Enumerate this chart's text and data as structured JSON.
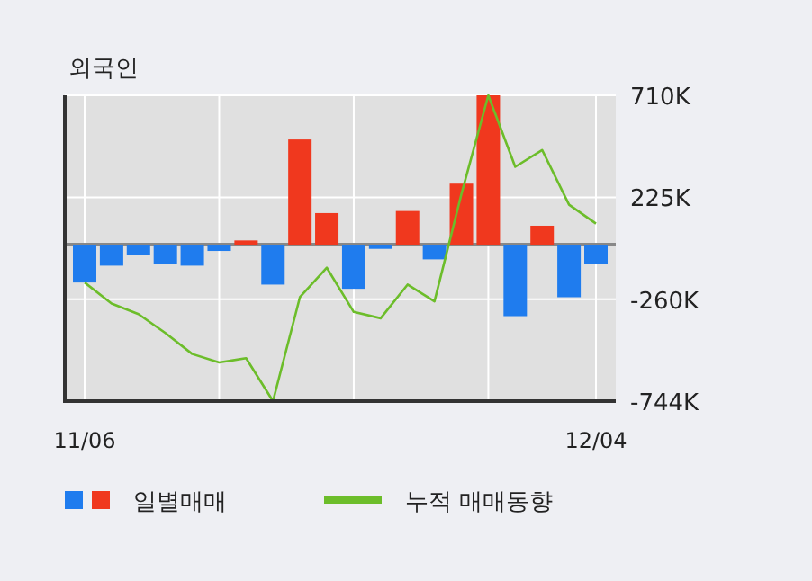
{
  "chart_data": {
    "type": "bar",
    "title": "외국인",
    "categories": [
      "11/06",
      null,
      null,
      null,
      null,
      null,
      null,
      null,
      null,
      null,
      null,
      null,
      null,
      null,
      null,
      null,
      null,
      null,
      null,
      "12/04"
    ],
    "series": [
      {
        "name": "일별매매",
        "values": [
          -180000,
          -100000,
          -50000,
          -90000,
          -100000,
          -30000,
          20000,
          -190000,
          500000,
          150000,
          -210000,
          -20000,
          160000,
          -70000,
          290000,
          710000,
          -340000,
          90000,
          -250000,
          -90000
        ],
        "colors": [
          "#1f7cee",
          "#1f7cee",
          "#1f7cee",
          "#1f7cee",
          "#1f7cee",
          "#1f7cee",
          "#f0381e",
          "#1f7cee",
          "#f0381e",
          "#f0381e",
          "#1f7cee",
          "#1f7cee",
          "#f0381e",
          "#1f7cee",
          "#f0381e",
          "#f0381e",
          "#1f7cee",
          "#f0381e",
          "#1f7cee",
          "#1f7cee"
        ]
      },
      {
        "name": "누적 매매동향",
        "type": "line",
        "color": "#6cbd2a",
        "values": [
          -180000,
          -280000,
          -330000,
          -420000,
          -520000,
          -560000,
          -540000,
          -744000,
          -250000,
          -110000,
          -320000,
          -350000,
          -190000,
          -270000,
          240000,
          710000,
          370000,
          450000,
          190000,
          100000
        ]
      }
    ],
    "ylim": [
      -744000,
      710000
    ],
    "yticks": [
      {
        "value": 710000,
        "label": "710K"
      },
      {
        "value": 225000,
        "label": "225K"
      },
      {
        "value": -260000,
        "label": "-260K"
      },
      {
        "value": -744000,
        "label": "-744K"
      }
    ],
    "grid": true,
    "legend": "bottom",
    "marker": "none",
    "line_style": "solid"
  }
}
